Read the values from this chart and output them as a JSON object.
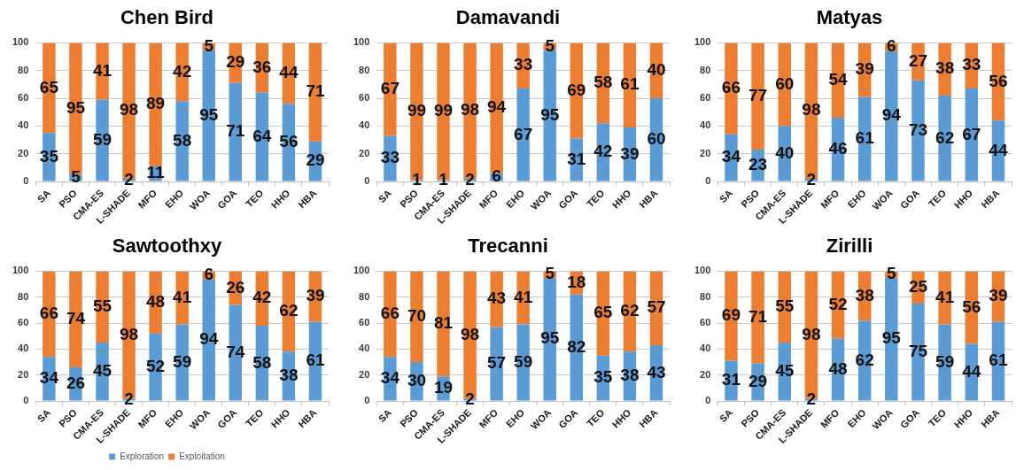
{
  "chart_data": [
    {
      "type": "bar",
      "title": "Chen Bird",
      "categories": [
        "SA",
        "PSO",
        "CMA-ES",
        "L-SHADE",
        "MFO",
        "EHO",
        "WOA",
        "GOA",
        "TEO",
        "HHO",
        "HBA"
      ],
      "series": [
        {
          "color": "#5b9bd5",
          "values": [
            35,
            5,
            59,
            2,
            11,
            58,
            95,
            71,
            64,
            56,
            29
          ]
        },
        {
          "color": "#ed7d31",
          "values": [
            65,
            95,
            41,
            98,
            89,
            42,
            5,
            29,
            36,
            44,
            71
          ]
        }
      ],
      "stacked": true,
      "ylim": [
        0,
        100
      ],
      "yticks": [
        0,
        20,
        40,
        60,
        80,
        100
      ],
      "grid": "y",
      "data_labels": true,
      "legend": false
    },
    {
      "type": "bar",
      "title": "Damavandi",
      "categories": [
        "SA",
        "PSO",
        "CMA-ES",
        "L-SHADE",
        "MFO",
        "EHO",
        "WOA",
        "GOA",
        "TEO",
        "HHO",
        "HBA"
      ],
      "series": [
        {
          "color": "#5b9bd5",
          "values": [
            33,
            1,
            1,
            2,
            6,
            67,
            95,
            31,
            42,
            39,
            60
          ]
        },
        {
          "color": "#ed7d31",
          "values": [
            67,
            99,
            99,
            98,
            94,
            33,
            5,
            69,
            58,
            61,
            40
          ]
        }
      ],
      "stacked": true,
      "ylim": [
        0,
        100
      ],
      "yticks": [
        0,
        20,
        40,
        60,
        80,
        100
      ],
      "grid": "y",
      "data_labels": true,
      "legend": false
    },
    {
      "type": "bar",
      "title": "Matyas",
      "categories": [
        "SA",
        "PSO",
        "CMA-ES",
        "L-SHADE",
        "MFO",
        "EHO",
        "WOA",
        "GOA",
        "TEO",
        "HHO",
        "HBA"
      ],
      "series": [
        {
          "color": "#5b9bd5",
          "values": [
            34,
            23,
            40,
            2,
            46,
            61,
            94,
            73,
            62,
            67,
            44
          ]
        },
        {
          "color": "#ed7d31",
          "values": [
            66,
            77,
            60,
            98,
            54,
            39,
            6,
            27,
            38,
            33,
            56
          ]
        }
      ],
      "stacked": true,
      "ylim": [
        0,
        100
      ],
      "yticks": [
        0,
        20,
        40,
        60,
        80,
        100
      ],
      "grid": "y",
      "data_labels": true,
      "legend": false
    },
    {
      "type": "bar",
      "title": "Sawtoothxy",
      "categories": [
        "SA",
        "PSO",
        "CMA-ES",
        "L-SHADE",
        "MFO",
        "EHO",
        "WOA",
        "GOA",
        "TEO",
        "HHO",
        "HBA"
      ],
      "series": [
        {
          "name": "Exploration",
          "color": "#5b9bd5",
          "values": [
            34,
            26,
            45,
            2,
            52,
            59,
            94,
            74,
            58,
            38,
            61
          ]
        },
        {
          "name": "Exploitation",
          "color": "#ed7d31",
          "values": [
            66,
            74,
            55,
            98,
            48,
            41,
            6,
            26,
            42,
            62,
            39
          ]
        }
      ],
      "stacked": true,
      "ylim": [
        0,
        100
      ],
      "yticks": [
        0,
        20,
        40,
        60,
        80,
        100
      ],
      "grid": "y",
      "data_labels": true,
      "legend": "bottom"
    },
    {
      "type": "bar",
      "title": "Trecanni",
      "categories": [
        "SA",
        "PSO",
        "CMA-ES",
        "L-SHADE",
        "MFO",
        "EHO",
        "WOA",
        "GOA",
        "TEO",
        "HHO",
        "HBA"
      ],
      "series": [
        {
          "color": "#5b9bd5",
          "values": [
            34,
            30,
            19,
            2,
            57,
            59,
            95,
            82,
            35,
            38,
            43
          ]
        },
        {
          "color": "#ed7d31",
          "values": [
            66,
            70,
            81,
            98,
            43,
            41,
            5,
            18,
            65,
            62,
            57
          ]
        }
      ],
      "stacked": true,
      "ylim": [
        0,
        100
      ],
      "yticks": [
        0,
        20,
        40,
        60,
        80,
        100
      ],
      "grid": "y",
      "data_labels": true,
      "legend": false
    },
    {
      "type": "bar",
      "title": "Zirilli",
      "categories": [
        "SA",
        "PSO",
        "CMA-ES",
        "L-SHADE",
        "MFO",
        "EHO",
        "WOA",
        "GOA",
        "TEO",
        "HHO",
        "HBA"
      ],
      "series": [
        {
          "color": "#5b9bd5",
          "values": [
            31,
            29,
            45,
            2,
            48,
            62,
            95,
            75,
            59,
            44,
            61
          ]
        },
        {
          "color": "#ed7d31",
          "values": [
            69,
            71,
            55,
            98,
            52,
            38,
            5,
            25,
            41,
            56,
            39
          ]
        }
      ],
      "stacked": true,
      "ylim": [
        0,
        100
      ],
      "yticks": [
        0,
        20,
        40,
        60,
        80,
        100
      ],
      "grid": "y",
      "data_labels": true,
      "legend": false
    }
  ]
}
